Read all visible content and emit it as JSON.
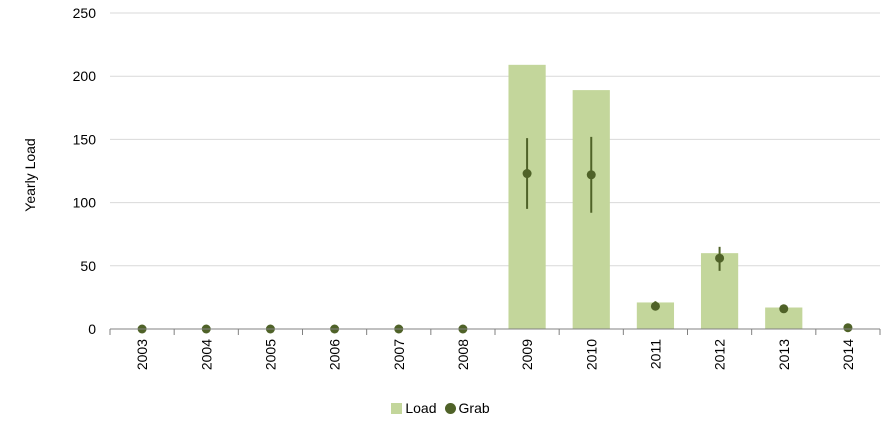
{
  "chart_data": {
    "type": "bar",
    "categories": [
      "2003",
      "2004",
      "2005",
      "2006",
      "2007",
      "2008",
      "2009",
      "2010",
      "2011",
      "2012",
      "2013",
      "2014"
    ],
    "series": [
      {
        "name": "Load",
        "kind": "bar",
        "color": "#c3d69b",
        "values": [
          0,
          0,
          0,
          0,
          0,
          0,
          209,
          189,
          21,
          60,
          17,
          0
        ]
      },
      {
        "name": "Grab",
        "kind": "point-with-error",
        "color": "#4f6228",
        "values": [
          0,
          0,
          0,
          0,
          0,
          0,
          123,
          122,
          18,
          56,
          16,
          1
        ],
        "error_low": [
          null,
          null,
          null,
          null,
          null,
          null,
          95,
          92,
          15,
          46,
          null,
          null
        ],
        "error_high": [
          null,
          null,
          null,
          null,
          null,
          null,
          151,
          152,
          22,
          65,
          null,
          null
        ]
      }
    ],
    "ylabel": "Yearly Load",
    "xlabel": "",
    "ylim": [
      0,
      250
    ],
    "yticks": [
      0,
      50,
      100,
      150,
      200,
      250
    ],
    "grid": true,
    "legend_position": "bottom"
  },
  "legend": {
    "load_label": "Load",
    "grab_label": "Grab",
    "load_color": "#c3d69b",
    "grab_color": "#4f6228"
  }
}
